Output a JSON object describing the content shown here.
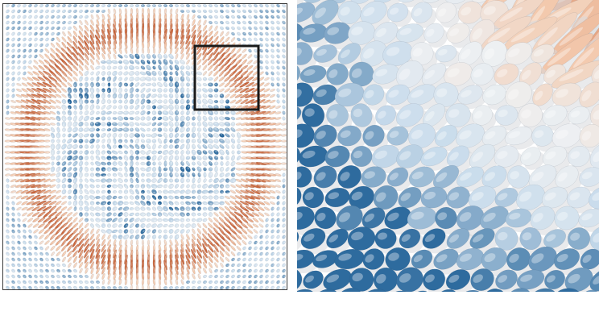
{
  "figure": {
    "panels": [
      {
        "id": "overview",
        "description_name": "director-field-overview"
      },
      {
        "id": "zoom",
        "description_name": "director-field-zoom-inset"
      }
    ],
    "colors": {
      "blue_dark": "#2e6b9e",
      "blue_mid": "#6f9ec6",
      "blue_light": "#c9dcec",
      "neutral": "#eef0f2",
      "orange_light": "#f3c9ad",
      "orange_mid": "#e7946a",
      "orange_dark": "#c8643a",
      "shadow": "#d7d9dc",
      "inset_box": "#1a1a1a"
    }
  }
}
